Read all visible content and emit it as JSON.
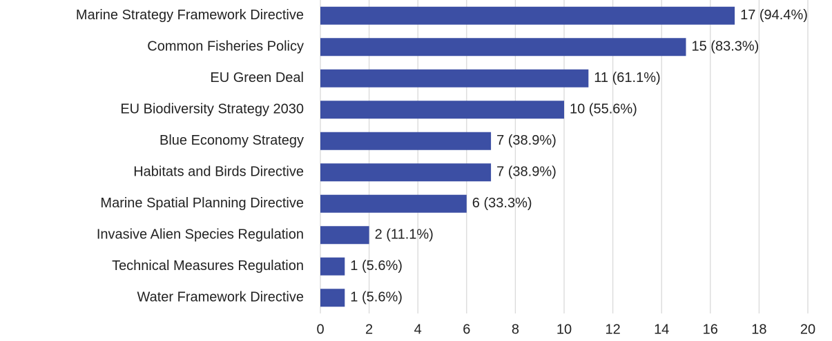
{
  "chart_data": {
    "type": "barh",
    "categories": [
      "Marine Strategy Framework Directive",
      "Common Fisheries Policy",
      "EU Green Deal",
      "EU Biodiversity Strategy 2030",
      "Blue Economy Strategy",
      "Habitats and Birds Directive",
      "Marine Spatial Planning Directive",
      "Invasive Alien Species Regulation",
      "Technical Measures Regulation",
      "Water Framework Directive"
    ],
    "values": [
      17,
      15,
      11,
      10,
      7,
      7,
      6,
      2,
      1,
      1
    ],
    "value_labels": [
      "17 (94.4%)",
      "15 (83.3%)",
      "11 (61.1%)",
      "10 (55.6%)",
      "7 (38.9%)",
      "7 (38.9%)",
      "6 (33.3%)",
      "2 (11.1%)",
      "1 (5.6%)",
      "1 (5.6%)"
    ],
    "color": "#3c4fa4",
    "xlim": [
      0,
      20
    ],
    "xticks": [
      0,
      2,
      4,
      6,
      8,
      10,
      12,
      14,
      16,
      18,
      20
    ],
    "grid": true
  }
}
